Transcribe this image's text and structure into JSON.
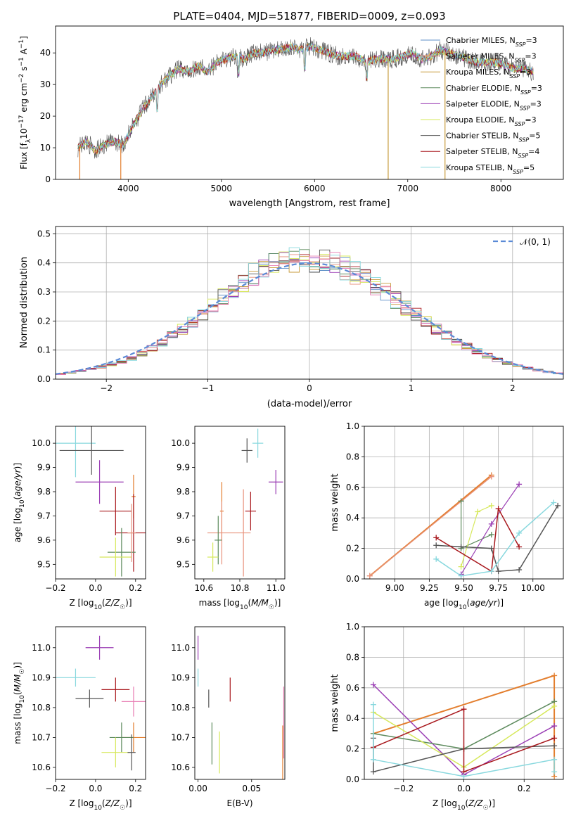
{
  "chart_data": [
    {
      "id": "spectrum",
      "type": "line",
      "title": "PLATE=0404, MJD=51877, FIBERID=0009, z=0.093",
      "xlabel": "wavelength [Angstrom, rest frame]",
      "ylabel": "Flux [f_λ10^-17 erg cm^-2 s^-1 A^-1]",
      "xlim": [
        3220,
        8670
      ],
      "ylim": [
        0,
        48.5
      ],
      "xticks": [
        4000,
        5000,
        6000,
        7000,
        8000
      ],
      "yticks": [
        0,
        10,
        20,
        30,
        40
      ],
      "grid": false,
      "legend_position": "top-right",
      "legend": [
        {
          "name": "Chabrier MILES, N_SSP=3",
          "color": "#5e8fc7"
        },
        {
          "name": "Salpeter MILES, N_SSP=3",
          "color": "#e8927c"
        },
        {
          "name": "Kroupa MILES, N_SSP=3",
          "color": "#c79a3a"
        },
        {
          "name": "Chabrier ELODIE, N_SSP=3",
          "color": "#5c8a5c"
        },
        {
          "name": "Salpeter ELODIE, N_SSP=3",
          "color": "#9b3fb5"
        },
        {
          "name": "Kroupa ELODIE, N_SSP=3",
          "color": "#d6e85a"
        },
        {
          "name": "Chabrier STELIB, N_SSP=5",
          "color": "#555555"
        },
        {
          "name": "Salpeter STELIB, N_SSP=4",
          "color": "#a8171c"
        },
        {
          "name": "Kroupa STELIB, N_SSP=5",
          "color": "#88d8de"
        }
      ],
      "continuum": [
        [
          3460,
          10
        ],
        [
          3550,
          12
        ],
        [
          3650,
          9
        ],
        [
          3750,
          11
        ],
        [
          3850,
          12
        ],
        [
          3950,
          11
        ],
        [
          4050,
          17
        ],
        [
          4150,
          22
        ],
        [
          4250,
          26
        ],
        [
          4350,
          30
        ],
        [
          4450,
          33
        ],
        [
          4550,
          35
        ],
        [
          4650,
          34
        ],
        [
          4750,
          36
        ],
        [
          4850,
          34
        ],
        [
          4950,
          37
        ],
        [
          5050,
          38
        ],
        [
          5150,
          39
        ],
        [
          5250,
          38
        ],
        [
          5350,
          40
        ],
        [
          5450,
          40
        ],
        [
          5550,
          41
        ],
        [
          5650,
          41
        ],
        [
          5750,
          42
        ],
        [
          5850,
          41
        ],
        [
          5950,
          42
        ],
        [
          6050,
          41
        ],
        [
          6150,
          40
        ],
        [
          6250,
          39
        ],
        [
          6350,
          39
        ],
        [
          6450,
          39
        ],
        [
          6550,
          37
        ],
        [
          6650,
          38
        ],
        [
          6750,
          38
        ],
        [
          6850,
          38
        ],
        [
          6950,
          39
        ],
        [
          7050,
          40
        ],
        [
          7150,
          38
        ],
        [
          7250,
          39
        ],
        [
          7350,
          41
        ],
        [
          7450,
          40
        ],
        [
          7550,
          39
        ],
        [
          7650,
          38
        ],
        [
          7750,
          37
        ],
        [
          7850,
          37
        ],
        [
          7950,
          37
        ],
        [
          8050,
          36
        ],
        [
          8150,
          35
        ],
        [
          8250,
          35
        ],
        [
          8350,
          34
        ]
      ],
      "drops": [
        [
          3480,
          0
        ],
        [
          3920,
          0
        ],
        [
          6790,
          0
        ],
        [
          7400,
          0
        ]
      ]
    },
    {
      "id": "residuals",
      "type": "bar",
      "xlabel": "(data-model)/error",
      "ylabel": "Normed distribution",
      "xlim": [
        -2.5,
        2.5
      ],
      "ylim": [
        0,
        0.525
      ],
      "xticks": [
        -2,
        -1,
        0,
        1,
        2
      ],
      "yticks": [
        0.0,
        0.1,
        0.2,
        0.3,
        0.4,
        0.5
      ],
      "grid": true,
      "legend_position": "top-right",
      "legend_label": "𝒩(0, 1)",
      "bin_width": 0.1,
      "bin_starts": [
        -2.5,
        -2.4,
        -2.3,
        -2.2,
        -2.1,
        -2.0,
        -1.9,
        -1.8,
        -1.7,
        -1.6,
        -1.5,
        -1.4,
        -1.3,
        -1.2,
        -1.1,
        -1.0,
        -0.9,
        -0.8,
        -0.7,
        -0.6,
        -0.5,
        -0.4,
        -0.3,
        -0.2,
        -0.1,
        0.0,
        0.1,
        0.2,
        0.3,
        0.4,
        0.5,
        0.6,
        0.7,
        0.8,
        0.9,
        1.0,
        1.1,
        1.2,
        1.3,
        1.4,
        1.5,
        1.6,
        1.7,
        1.8,
        1.9,
        2.0,
        2.1,
        2.2,
        2.3,
        2.4
      ],
      "base_values": [
        0.017,
        0.022,
        0.028,
        0.035,
        0.042,
        0.05,
        0.06,
        0.072,
        0.088,
        0.105,
        0.125,
        0.148,
        0.172,
        0.198,
        0.225,
        0.255,
        0.285,
        0.312,
        0.338,
        0.36,
        0.378,
        0.392,
        0.402,
        0.408,
        0.41,
        0.41,
        0.405,
        0.396,
        0.383,
        0.366,
        0.345,
        0.322,
        0.297,
        0.272,
        0.246,
        0.22,
        0.196,
        0.172,
        0.15,
        0.13,
        0.112,
        0.095,
        0.08,
        0.067,
        0.056,
        0.046,
        0.038,
        0.031,
        0.025,
        0.02
      ],
      "gaussian": {
        "mu": 0,
        "sigma": 1,
        "color": "#5a8ad6"
      }
    },
    {
      "id": "age-vs-Z",
      "type": "scatter",
      "xlabel": "Z [log10(Z/Z☉)]",
      "ylabel": "age [log10(age/yr)]",
      "xlim": [
        -0.2,
        0.25
      ],
      "ylim": [
        9.44,
        10.07
      ],
      "xticks": [
        -0.2,
        0.0,
        0.2
      ],
      "yticks": [
        9.5,
        9.6,
        9.7,
        9.8,
        9.9,
        10.0
      ],
      "grid": false,
      "points": [
        {
          "x": -0.1,
          "y": 10.0,
          "xerr": 0.1,
          "yerr": 0.14,
          "color": "#88d8de"
        },
        {
          "x": -0.02,
          "y": 9.97,
          "xerr": 0.16,
          "yerr": 0.1,
          "color": "#555555"
        },
        {
          "x": 0.02,
          "y": 9.84,
          "xerr": 0.12,
          "yerr": 0.09,
          "color": "#9b3fb5"
        },
        {
          "x": 0.19,
          "y": 9.78,
          "xerr": 0.01,
          "yerr": 0.09,
          "color": "#e37e2e"
        },
        {
          "x": 0.1,
          "y": 9.72,
          "xerr": 0.08,
          "yerr": 0.1,
          "color": "#a8171c"
        },
        {
          "x": 0.19,
          "y": 9.63,
          "xerr": 0.09,
          "yerr": 0.16,
          "color": "#a8171c"
        },
        {
          "x": 0.13,
          "y": 9.55,
          "xerr": 0.07,
          "yerr": 0.1,
          "color": "#5c8a5c"
        },
        {
          "x": 0.1,
          "y": 9.53,
          "xerr": 0.08,
          "yerr": 0.08,
          "color": "#d6e85a"
        },
        {
          "x": 0.18,
          "y": 9.63,
          "xerr": 0.02,
          "yerr": 0.12,
          "color": "#e8927c"
        }
      ]
    },
    {
      "id": "age-vs-mass",
      "type": "scatter",
      "xlabel": "mass [log10(M/M☉)]",
      "ylabel": "",
      "xlim": [
        10.55,
        11.05
      ],
      "ylim": [
        9.44,
        10.07
      ],
      "xticks": [
        10.6,
        10.8,
        11.0
      ],
      "yticks": [
        9.5,
        9.6,
        9.7,
        9.8,
        9.9,
        10.0
      ],
      "grid": false,
      "points": [
        {
          "x": 10.9,
          "y": 10.0,
          "xerr": 0.03,
          "yerr": 0.06,
          "color": "#88d8de"
        },
        {
          "x": 10.84,
          "y": 9.97,
          "xerr": 0.03,
          "yerr": 0.05,
          "color": "#555555"
        },
        {
          "x": 11.0,
          "y": 9.84,
          "xerr": 0.04,
          "yerr": 0.05,
          "color": "#9b3fb5"
        },
        {
          "x": 10.7,
          "y": 9.72,
          "xerr": 0.01,
          "yerr": 0.12,
          "color": "#e37e2e"
        },
        {
          "x": 10.86,
          "y": 9.72,
          "xerr": 0.03,
          "yerr": 0.08,
          "color": "#a8171c"
        },
        {
          "x": 10.7,
          "y": 9.63,
          "xerr": 0.08,
          "yerr": 0.13,
          "color": "#e8927c"
        },
        {
          "x": 10.68,
          "y": 9.6,
          "xerr": 0.02,
          "yerr": 0.1,
          "color": "#5c8a5c"
        },
        {
          "x": 10.65,
          "y": 9.53,
          "xerr": 0.03,
          "yerr": 0.06,
          "color": "#d6e85a"
        },
        {
          "x": 10.82,
          "y": 9.63,
          "xerr": 0.04,
          "yerr": 0.18,
          "color": "#e8927c"
        }
      ]
    },
    {
      "id": "mass-weight-vs-age",
      "type": "line",
      "xlabel": "age [log10(age/yr)]",
      "ylabel": "mass weight",
      "xlim": [
        8.78,
        10.22
      ],
      "ylim": [
        0.0,
        1.0
      ],
      "xticks": [
        9.0,
        9.25,
        9.5,
        9.75,
        10.0
      ],
      "yticks": [
        0.0,
        0.2,
        0.4,
        0.6,
        0.8,
        1.0
      ],
      "grid": true,
      "series": [
        {
          "color": "#e37e2e",
          "width": 2,
          "points": [
            [
              8.82,
              0.02
            ],
            [
              9.7,
              0.68
            ]
          ]
        },
        {
          "color": "#e8927c",
          "width": 1.2,
          "points": [
            [
              8.82,
              0.02
            ],
            [
              9.7,
              0.67
            ]
          ]
        },
        {
          "color": "#5c8a5c",
          "width": 1.2,
          "points": [
            [
              9.48,
              0.51
            ],
            [
              9.48,
              0.2
            ],
            [
              9.7,
              0.29
            ]
          ]
        },
        {
          "color": "#9b3fb5",
          "width": 1.2,
          "points": [
            [
              9.48,
              0.03
            ],
            [
              9.7,
              0.36
            ],
            [
              9.9,
              0.62
            ]
          ]
        },
        {
          "color": "#d6e85a",
          "width": 1.2,
          "points": [
            [
              9.48,
              0.08
            ],
            [
              9.6,
              0.44
            ],
            [
              9.7,
              0.48
            ]
          ]
        },
        {
          "color": "#555555",
          "width": 1.5,
          "points": [
            [
              9.3,
              0.22
            ],
            [
              9.48,
              0.21
            ],
            [
              9.7,
              0.2
            ],
            [
              9.75,
              0.05
            ],
            [
              9.9,
              0.06
            ],
            [
              10.18,
              0.48
            ]
          ]
        },
        {
          "color": "#a8171c",
          "width": 1.5,
          "points": [
            [
              9.3,
              0.27
            ],
            [
              9.7,
              0.05
            ],
            [
              9.75,
              0.46
            ],
            [
              9.9,
              0.21
            ]
          ]
        },
        {
          "color": "#88d8de",
          "width": 1.5,
          "points": [
            [
              9.3,
              0.13
            ],
            [
              9.48,
              0.02
            ],
            [
              9.7,
              0.05
            ],
            [
              9.9,
              0.3
            ],
            [
              10.15,
              0.5
            ]
          ]
        }
      ]
    },
    {
      "id": "mass-vs-Z",
      "type": "scatter",
      "xlabel": "Z [log10(Z/Z☉)]",
      "ylabel": "mass [log10(M/M☉)]",
      "xlim": [
        -0.2,
        0.25
      ],
      "ylim": [
        10.56,
        11.07
      ],
      "xticks": [
        -0.2,
        0.0,
        0.2
      ],
      "yticks": [
        10.6,
        10.7,
        10.8,
        10.9,
        11.0
      ],
      "grid": false,
      "points": [
        {
          "x": -0.1,
          "y": 10.9,
          "xerr": 0.1,
          "yerr": 0.03,
          "color": "#88d8de"
        },
        {
          "x": 0.02,
          "y": 11.0,
          "xerr": 0.07,
          "yerr": 0.04,
          "color": "#9b3fb5"
        },
        {
          "x": -0.03,
          "y": 10.83,
          "xerr": 0.07,
          "yerr": 0.03,
          "color": "#555555"
        },
        {
          "x": 0.1,
          "y": 10.86,
          "xerr": 0.07,
          "yerr": 0.04,
          "color": "#a8171c"
        },
        {
          "x": 0.19,
          "y": 10.82,
          "xerr": 0.06,
          "yerr": 0.05,
          "color": "#e87fb4"
        },
        {
          "x": 0.19,
          "y": 10.7,
          "xerr": 0.06,
          "yerr": 0.05,
          "color": "#e37e2e"
        },
        {
          "x": 0.13,
          "y": 10.7,
          "xerr": 0.06,
          "yerr": 0.05,
          "color": "#5c8a5c"
        },
        {
          "x": 0.1,
          "y": 10.65,
          "xerr": 0.07,
          "yerr": 0.05,
          "color": "#d6e85a"
        },
        {
          "x": 0.18,
          "y": 10.65,
          "xerr": 0.02,
          "yerr": 0.06,
          "color": "#555555"
        }
      ]
    },
    {
      "id": "mass-vs-ebv",
      "type": "scatter",
      "xlabel": "E(B-V)",
      "ylabel": "",
      "xlim": [
        -0.003,
        0.081
      ],
      "ylim": [
        10.56,
        11.07
      ],
      "xticks": [
        0.0,
        0.05
      ],
      "yticks": [
        10.6,
        10.7,
        10.8,
        10.9,
        11.0
      ],
      "grid": false,
      "points": [
        {
          "x": 0.0,
          "y": 11.0,
          "xerr": 0,
          "yerr": 0.04,
          "color": "#9b3fb5"
        },
        {
          "x": 0.0,
          "y": 10.9,
          "xerr": 0,
          "yerr": 0.03,
          "color": "#88d8de"
        },
        {
          "x": 0.01,
          "y": 10.83,
          "xerr": 0,
          "yerr": 0.03,
          "color": "#555555"
        },
        {
          "x": 0.03,
          "y": 10.86,
          "xerr": 0,
          "yerr": 0.04,
          "color": "#a8171c"
        },
        {
          "x": 0.013,
          "y": 10.68,
          "xerr": 0,
          "yerr": 0.07,
          "color": "#5c8a5c"
        },
        {
          "x": 0.02,
          "y": 10.65,
          "xerr": 0,
          "yerr": 0.07,
          "color": "#d6e85a"
        },
        {
          "x": 0.08,
          "y": 10.75,
          "xerr": 0,
          "yerr": 0.12,
          "color": "#e87fb4"
        },
        {
          "x": 0.079,
          "y": 10.65,
          "xerr": 0,
          "yerr": 0.09,
          "color": "#e37e2e"
        }
      ]
    },
    {
      "id": "mass-weight-vs-Z",
      "type": "line",
      "xlabel": "Z [log10(Z/Z☉)]",
      "ylabel": "mass weight",
      "xlim": [
        -0.33,
        0.33
      ],
      "ylim": [
        0.0,
        1.0
      ],
      "xticks": [
        -0.2,
        0.0,
        0.2
      ],
      "yticks": [
        0.0,
        0.2,
        0.4,
        0.6,
        0.8,
        1.0
      ],
      "grid": true,
      "series": [
        {
          "color": "#e37e2e",
          "width": 2,
          "points": [
            [
              -0.3,
              0.3
            ],
            [
              0.3,
              0.68
            ],
            [
              0.3,
              0.02
            ]
          ]
        },
        {
          "color": "#9b3fb5",
          "width": 1.5,
          "points": [
            [
              -0.3,
              0.62
            ],
            [
              0.0,
              0.03
            ],
            [
              0.3,
              0.35
            ]
          ]
        },
        {
          "color": "#5c8a5c",
          "width": 1.5,
          "points": [
            [
              -0.3,
              0.3
            ],
            [
              0.0,
              0.2
            ],
            [
              0.3,
              0.51
            ]
          ]
        },
        {
          "color": "#d6e85a",
          "width": 1.5,
          "points": [
            [
              -0.3,
              0.44
            ],
            [
              0.0,
              0.08
            ],
            [
              0.3,
              0.48
            ]
          ]
        },
        {
          "color": "#555555",
          "width": 1.5,
          "points": [
            [
              -0.3,
              0.27
            ],
            [
              -0.3,
              0.05
            ],
            [
              0.0,
              0.2
            ],
            [
              0.3,
              0.22
            ]
          ]
        },
        {
          "color": "#a8171c",
          "width": 1.5,
          "points": [
            [
              -0.3,
              0.21
            ],
            [
              0.0,
              0.46
            ],
            [
              0.0,
              0.05
            ],
            [
              0.3,
              0.27
            ]
          ]
        },
        {
          "color": "#88d8de",
          "width": 1.5,
          "points": [
            [
              -0.3,
              0.49
            ],
            [
              -0.3,
              0.13
            ],
            [
              0.0,
              0.02
            ],
            [
              0.3,
              0.13
            ],
            [
              0.3,
              0.05
            ]
          ]
        }
      ]
    }
  ]
}
